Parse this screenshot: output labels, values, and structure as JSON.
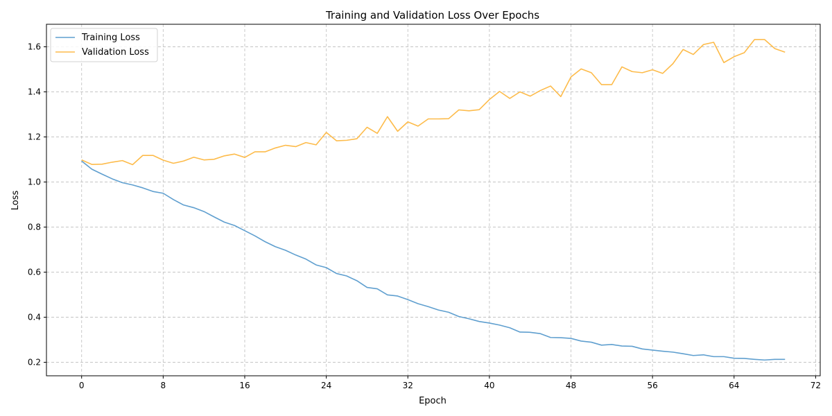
{
  "chart_data": {
    "type": "line",
    "title": "Training and Validation Loss Over Epochs",
    "xlabel": "Epoch",
    "ylabel": "Loss",
    "xlim": [
      -3.45,
      72.45
    ],
    "ylim": [
      0.14,
      1.7
    ],
    "xticks": [
      0,
      8,
      16,
      24,
      32,
      40,
      48,
      56,
      64,
      72
    ],
    "yticks": [
      0.2,
      0.4,
      0.6,
      0.8,
      1.0,
      1.2,
      1.4,
      1.6
    ],
    "ytick_labels": [
      "0.2",
      "0.4",
      "0.6",
      "0.8",
      "1.0",
      "1.2",
      "1.4",
      "1.6"
    ],
    "grid": true,
    "legend_position": "top-left",
    "x": [
      0,
      1,
      2,
      3,
      4,
      5,
      6,
      7,
      8,
      9,
      10,
      11,
      12,
      13,
      14,
      15,
      16,
      17,
      18,
      19,
      20,
      21,
      22,
      23,
      24,
      25,
      26,
      27,
      28,
      29,
      30,
      31,
      32,
      33,
      34,
      35,
      36,
      37,
      38,
      39,
      40,
      41,
      42,
      43,
      44,
      45,
      46,
      47,
      48,
      49,
      50,
      51,
      52,
      53,
      54,
      55,
      56,
      57,
      58,
      59,
      60,
      61,
      62,
      63,
      64,
      65,
      66,
      67,
      68,
      69
    ],
    "series": [
      {
        "name": "Training Loss",
        "color": "#5f9fcf",
        "values": [
          1.093,
          1.057,
          1.035,
          1.014,
          0.997,
          0.987,
          0.974,
          0.958,
          0.95,
          0.922,
          0.898,
          0.886,
          0.869,
          0.845,
          0.822,
          0.807,
          0.784,
          0.761,
          0.735,
          0.713,
          0.697,
          0.676,
          0.658,
          0.632,
          0.62,
          0.594,
          0.583,
          0.562,
          0.532,
          0.526,
          0.499,
          0.494,
          0.478,
          0.46,
          0.447,
          0.432,
          0.422,
          0.403,
          0.393,
          0.381,
          0.374,
          0.365,
          0.353,
          0.334,
          0.333,
          0.327,
          0.31,
          0.309,
          0.306,
          0.294,
          0.289,
          0.276,
          0.279,
          0.272,
          0.271,
          0.259,
          0.254,
          0.249,
          0.245,
          0.238,
          0.23,
          0.233,
          0.225,
          0.225,
          0.218,
          0.217,
          0.213,
          0.21,
          0.213,
          0.213
        ]
      },
      {
        "name": "Validation Loss",
        "color": "#fdbb4a",
        "values": [
          1.098,
          1.078,
          1.079,
          1.088,
          1.095,
          1.077,
          1.118,
          1.118,
          1.097,
          1.083,
          1.093,
          1.11,
          1.098,
          1.101,
          1.116,
          1.124,
          1.109,
          1.134,
          1.134,
          1.151,
          1.163,
          1.157,
          1.175,
          1.165,
          1.22,
          1.183,
          1.185,
          1.192,
          1.243,
          1.216,
          1.29,
          1.225,
          1.267,
          1.248,
          1.28,
          1.28,
          1.281,
          1.32,
          1.316,
          1.321,
          1.366,
          1.402,
          1.371,
          1.4,
          1.381,
          1.406,
          1.426,
          1.379,
          1.466,
          1.502,
          1.485,
          1.432,
          1.432,
          1.511,
          1.49,
          1.485,
          1.498,
          1.482,
          1.525,
          1.588,
          1.566,
          1.61,
          1.62,
          1.53,
          1.556,
          1.574,
          1.632,
          1.632,
          1.592,
          1.576
        ]
      }
    ]
  }
}
